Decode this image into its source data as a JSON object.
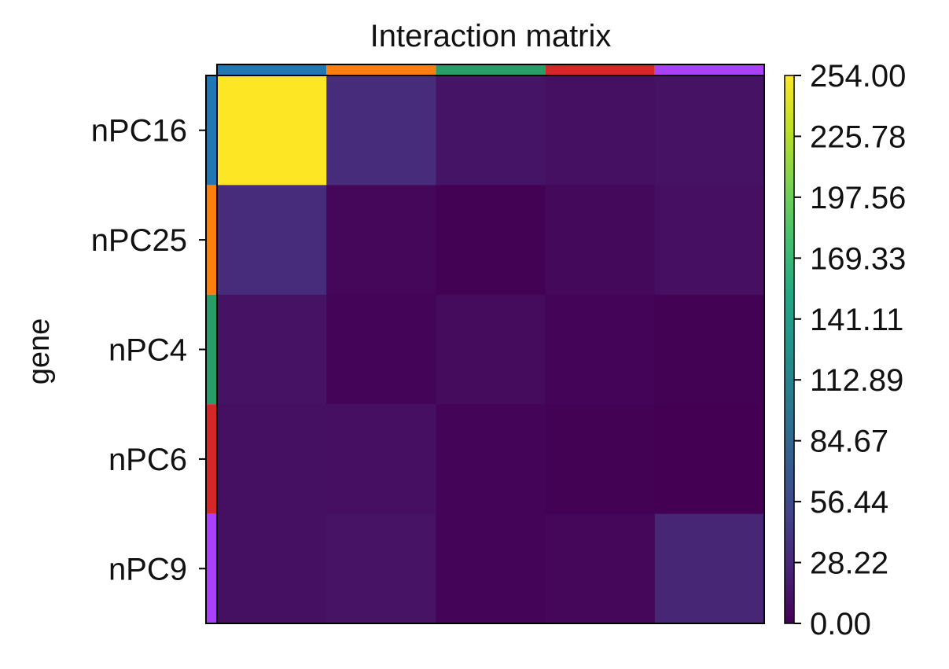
{
  "chart_data": {
    "type": "heatmap",
    "title": "Interaction matrix",
    "ylabel": "gene",
    "xlabel": "",
    "row_labels": [
      "nPC16",
      "nPC25",
      "nPC4",
      "nPC6",
      "nPC9"
    ],
    "column_labels": [],
    "group_colors": [
      "#1f77b4",
      "#ff7f0e",
      "#279e68",
      "#d62728",
      "#aa40fc"
    ],
    "values": [
      [
        254,
        32,
        14,
        11,
        12
      ],
      [
        32,
        4,
        1,
        6,
        10
      ],
      [
        12,
        3,
        7,
        2,
        1
      ],
      [
        11,
        10,
        3,
        1,
        0
      ],
      [
        11,
        13,
        3,
        4,
        27
      ]
    ],
    "colormap": "viridis",
    "colorbar": {
      "vmin": 0,
      "vmax": 254,
      "ticks": [
        "254.00",
        "225.78",
        "197.56",
        "169.33",
        "141.11",
        "112.89",
        "84.67",
        "56.44",
        "28.22",
        "0.00"
      ]
    }
  }
}
